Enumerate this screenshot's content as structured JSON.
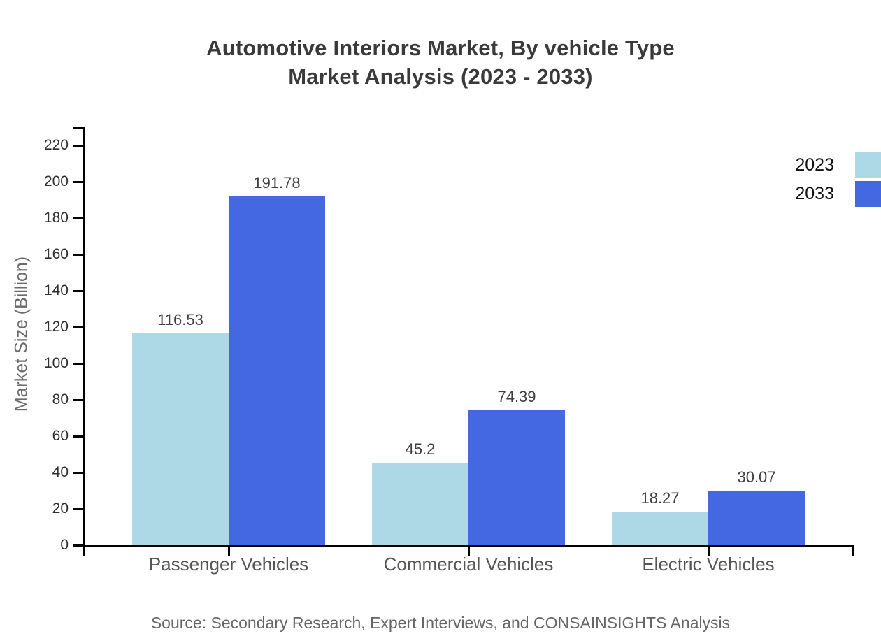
{
  "title": {
    "line1": "Automotive Interiors Market, By vehicle Type",
    "line2": "Market Analysis (2023 - 2033)"
  },
  "source": "Source: Secondary Research, Expert Interviews, and CONSAINSIGHTS Analysis",
  "colors": {
    "series_2023": "#ADD8E6",
    "series_2033": "#4467E2",
    "axis": "#000000",
    "title_text": "#3a3a3a",
    "value_label_text": "#3f3f3f",
    "tick_label_text": "#2f2f2f",
    "category_label_text": "#555555",
    "y_axis_title_text": "#6a6a6a",
    "source_text": "#666666"
  },
  "chart_data": {
    "type": "bar",
    "title": "Automotive Interiors Market, By vehicle Type Market Analysis (2023 - 2033)",
    "categories": [
      "Passenger Vehicles",
      "Commercial Vehicles",
      "Electric Vehicles"
    ],
    "series": [
      {
        "name": "2023",
        "color": "#ADD8E6",
        "values": [
          116.53,
          45.2,
          18.27
        ]
      },
      {
        "name": "2033",
        "color": "#4467E2",
        "values": [
          191.78,
          74.39,
          30.07
        ]
      }
    ],
    "value_labels": [
      [
        "116.53",
        "45.2",
        "18.27"
      ],
      [
        "191.78",
        "74.39",
        "30.07"
      ]
    ],
    "xlabel": "",
    "ylabel": "Market Size (Billion)",
    "ylim": [
      0,
      230
    ],
    "yticks": [
      0,
      20,
      40,
      60,
      80,
      100,
      120,
      140,
      160,
      180,
      200,
      220
    ],
    "grid": false,
    "data_labels": true,
    "legend_position": "top-right"
  }
}
